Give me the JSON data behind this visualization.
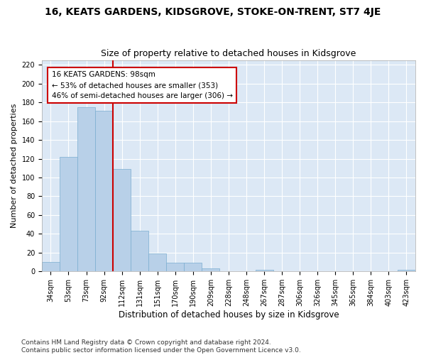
{
  "title": "16, KEATS GARDENS, KIDSGROVE, STOKE-ON-TRENT, ST7 4JE",
  "subtitle": "Size of property relative to detached houses in Kidsgrove",
  "xlabel": "Distribution of detached houses by size in Kidsgrove",
  "ylabel": "Number of detached properties",
  "bar_color": "#b8d0e8",
  "bar_edge_color": "#7aaed0",
  "bg_color": "#dce8f5",
  "grid_color": "#ffffff",
  "categories": [
    "34sqm",
    "53sqm",
    "73sqm",
    "92sqm",
    "112sqm",
    "131sqm",
    "151sqm",
    "170sqm",
    "190sqm",
    "209sqm",
    "228sqm",
    "248sqm",
    "267sqm",
    "287sqm",
    "306sqm",
    "326sqm",
    "345sqm",
    "365sqm",
    "384sqm",
    "403sqm",
    "423sqm"
  ],
  "values": [
    10,
    122,
    175,
    171,
    109,
    43,
    19,
    9,
    9,
    3,
    0,
    0,
    2,
    0,
    0,
    0,
    0,
    0,
    0,
    0,
    2
  ],
  "vline_x": 3.5,
  "vline_color": "#cc0000",
  "annotation_text": "16 KEATS GARDENS: 98sqm\n← 53% of detached houses are smaller (353)\n46% of semi-detached houses are larger (306) →",
  "annotation_box_color": "#ffffff",
  "annotation_box_edge": "#cc0000",
  "ylim": [
    0,
    225
  ],
  "yticks": [
    0,
    20,
    40,
    60,
    80,
    100,
    120,
    140,
    160,
    180,
    200,
    220
  ],
  "footer": "Contains HM Land Registry data © Crown copyright and database right 2024.\nContains public sector information licensed under the Open Government Licence v3.0.",
  "title_fontsize": 10,
  "subtitle_fontsize": 9,
  "xlabel_fontsize": 8.5,
  "ylabel_fontsize": 8,
  "tick_fontsize": 7,
  "footer_fontsize": 6.5,
  "annotation_fontsize": 7.5
}
